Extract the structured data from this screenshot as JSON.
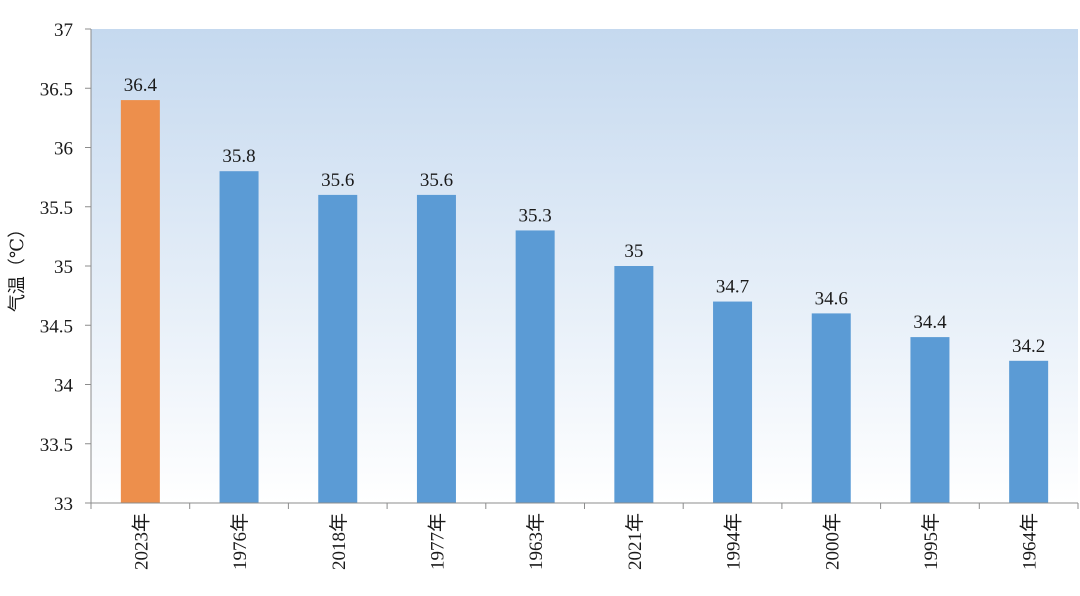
{
  "chart_data": {
    "type": "bar",
    "ylabel": "气温（℃）",
    "xlabel": "",
    "categories": [
      "2023年",
      "1976年",
      "2018年",
      "1977年",
      "1963年",
      "2021年",
      "1994年",
      "2000年",
      "1995年",
      "1964年"
    ],
    "values": [
      36.4,
      35.8,
      35.6,
      35.6,
      35.3,
      35,
      34.7,
      34.6,
      34.4,
      34.2
    ],
    "data_labels": [
      "36.4",
      "35.8",
      "35.6",
      "35.6",
      "35.3",
      "35",
      "34.7",
      "34.6",
      "34.4",
      "34.2"
    ],
    "ylim": [
      33,
      37
    ],
    "yticks": [
      33,
      33.5,
      34,
      34.5,
      35,
      35.5,
      36,
      36.5,
      37
    ],
    "ytick_labels": [
      "33",
      "33.5",
      "34",
      "34.5",
      "35",
      "35.5",
      "36",
      "36.5",
      "37"
    ],
    "highlight_index": 0,
    "grid": false,
    "legend": "none",
    "colors": {
      "bar": "#5b9bd5",
      "highlight_bar": "#ed8f4c",
      "plot_bg_top": "#c5d9ef",
      "plot_bg_bottom": "#ffffff",
      "axis": "#8c8c8c"
    }
  }
}
